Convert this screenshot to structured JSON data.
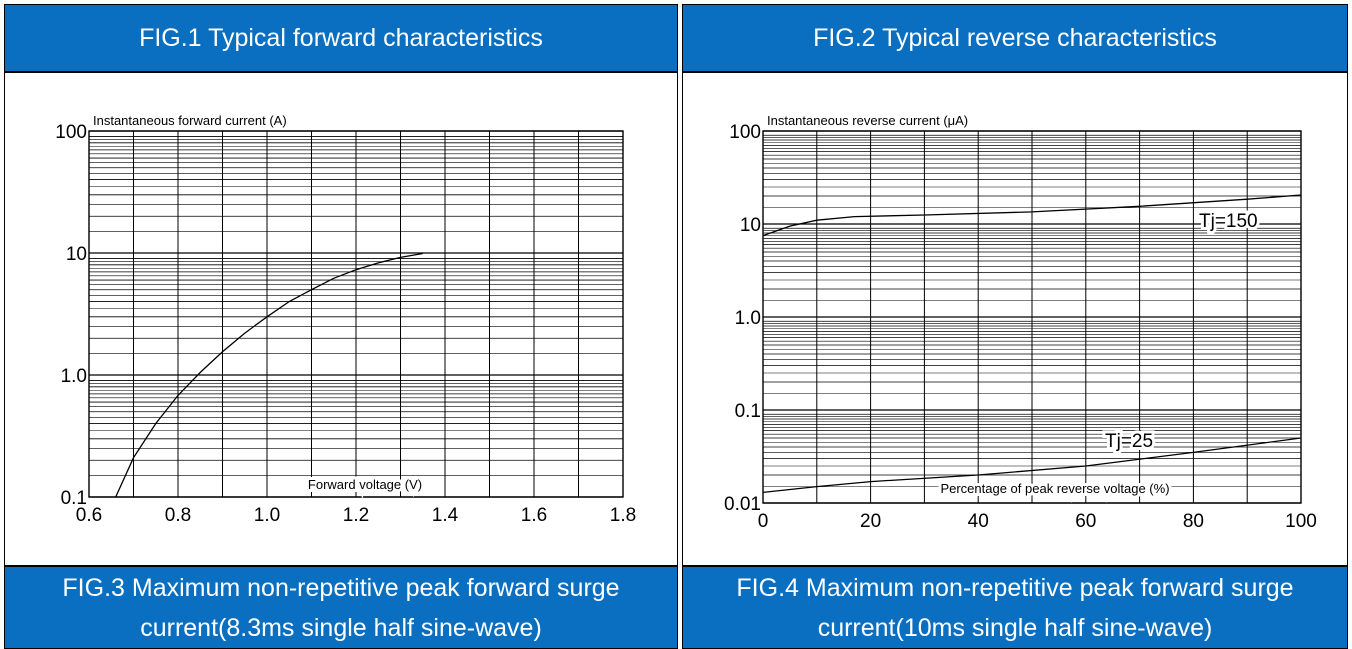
{
  "panels": {
    "fig1_title": "FIG.1 Typical forward characteristics",
    "fig2_title": "FIG.2 Typical reverse characteristics",
    "fig3_title_line1": "FIG.3 Maximum non-repetitive peak forward surge",
    "fig3_title_line2": "current(8.3ms single half sine-wave)",
    "fig4_title_line1": "FIG.4 Maximum non-repetitive peak forward surge",
    "fig4_title_line2": "current(10ms single half sine-wave)"
  },
  "colors": {
    "header_bg": "#0a6fc0",
    "header_text": "#ffffff",
    "grid": "#000000"
  },
  "chart_data": [
    {
      "type": "line",
      "title": "FIG.1 Typical forward characteristics",
      "xlabel": "Forward voltage (V)",
      "ylabel": "Instantaneous forward current (A)",
      "xlim": [
        0.6,
        1.8
      ],
      "ylim": [
        0.1,
        100
      ],
      "yscale": "log",
      "x_ticks": [
        "0.6",
        "0.8",
        "1.0",
        "1.2",
        "1.4",
        "1.6",
        "1.8"
      ],
      "y_ticks": [
        "0.1",
        "1.0",
        "10",
        "100"
      ],
      "grid": true,
      "series": [
        {
          "x": [
            0.66,
            0.7,
            0.75,
            0.8,
            0.85,
            0.9,
            0.95,
            1.0,
            1.05,
            1.1,
            1.15,
            1.2,
            1.25,
            1.3,
            1.35
          ],
          "y": [
            0.1,
            0.21,
            0.4,
            0.68,
            1.05,
            1.55,
            2.2,
            3.0,
            4.0,
            5.0,
            6.2,
            7.3,
            8.3,
            9.2,
            9.9
          ]
        }
      ]
    },
    {
      "type": "line",
      "title": "FIG.2 Typical reverse characteristics",
      "xlabel": "Percentage of peak reverse voltage (%)",
      "ylabel": "Instantaneous reverse current (μA)",
      "xlim": [
        0,
        100
      ],
      "ylim": [
        0.01,
        100
      ],
      "yscale": "log",
      "x_ticks": [
        "0",
        "20",
        "40",
        "60",
        "80",
        "100"
      ],
      "y_ticks": [
        "0.01",
        "0.1",
        "1.0",
        "10",
        "100"
      ],
      "grid": true,
      "annotations": [
        "Tj=150",
        "Tj=25"
      ],
      "series": [
        {
          "x": [
            0,
            5,
            10,
            17,
            30,
            50,
            70,
            90,
            100
          ],
          "y": [
            7.5,
            9.5,
            11.0,
            12.0,
            12.5,
            13.5,
            15.5,
            18.5,
            20.5
          ]
        },
        {
          "x": [
            0,
            10,
            20,
            40,
            60,
            80,
            100
          ],
          "y": [
            0.013,
            0.015,
            0.017,
            0.02,
            0.025,
            0.035,
            0.05
          ]
        }
      ]
    }
  ]
}
